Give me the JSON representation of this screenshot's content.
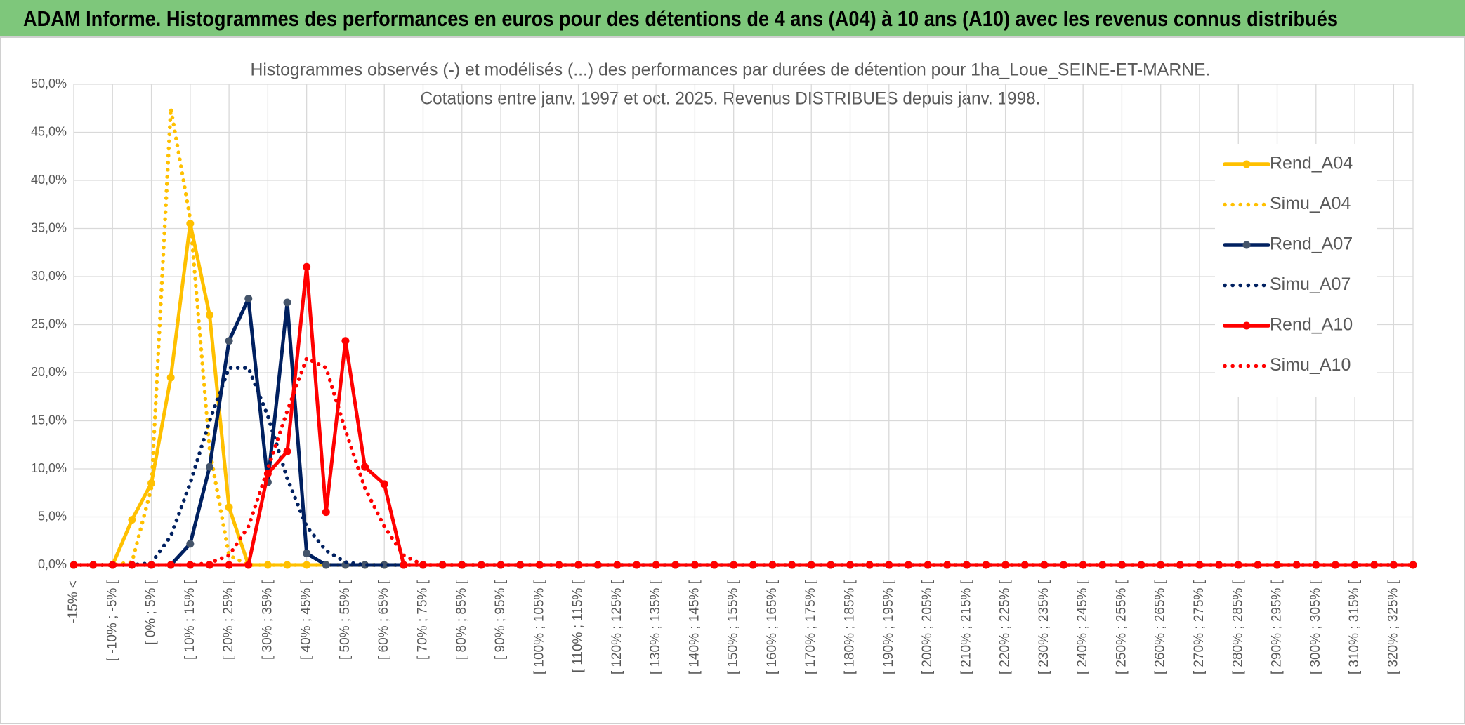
{
  "chart_data": {
    "type": "line",
    "title": "ADAM Informe. Histogrammes des performances en euros pour des détentions de 4 ans (A04) à 10 ans (A10) avec les revenus connus distribués",
    "subtitle": [
      "Histogrammes observés (-) et modélisés (...) des performances par durées de détention pour 1ha_Loue_SEINE-ET-MARNE.",
      "Cotations entre janv. 1997 et oct. 2025. Revenus DISTRIBUES depuis janv. 1998."
    ],
    "categories": [
      "-15% <",
      null,
      "[ -10% ; -5% [",
      null,
      "[ 0% ; 5% [",
      null,
      "[ 10% ; 15% [",
      null,
      "[ 20% ; 25% [",
      null,
      "[ 30% ; 35% [",
      null,
      "[ 40% ; 45% [",
      null,
      "[ 50% ; 55% [",
      null,
      "[ 60% ; 65% [",
      null,
      "[ 70% ; 75% [",
      null,
      "[ 80% ; 85% [",
      null,
      "[ 90% ; 95% [",
      null,
      "[ 100% ; 105% [",
      null,
      "[ 110% ; 115% [",
      null,
      "[ 120% ; 125% [",
      null,
      "[ 130% ; 135% [",
      null,
      "[ 140% ; 145% [",
      null,
      "[ 150% ; 155% [",
      null,
      "[ 160% ; 165% [",
      null,
      "[ 170% ; 175% [",
      null,
      "[ 180% ; 185% [",
      null,
      "[ 190% ; 195% [",
      null,
      "[ 200% ; 205% [",
      null,
      "[ 210% ; 215% [",
      null,
      "[ 220% ; 225% [",
      null,
      "[ 230% ; 235% [",
      null,
      "[ 240% ; 245% [",
      null,
      "[ 250% ; 255% [",
      null,
      "[ 260% ; 265% [",
      null,
      "[ 270% ; 275% [",
      null,
      "[ 280% ; 285% [",
      null,
      "[ 290% ; 295% [",
      null,
      "[ 300% ; 305% [",
      null,
      "[ 310% ; 315% [",
      null,
      "[ 320% ; 325% [",
      null
    ],
    "series": [
      {
        "name": "Rend_A04",
        "color": "#ffc000",
        "style": "solid",
        "markers": true,
        "values": [
          0,
          0,
          0,
          4.7,
          8.5,
          19.5,
          35.5,
          26,
          6,
          0,
          0,
          0,
          0,
          0,
          0,
          0,
          0,
          0,
          0,
          0,
          0,
          0,
          0,
          0,
          0,
          0,
          0,
          0,
          0,
          0,
          0,
          0,
          0,
          0,
          0,
          0,
          0,
          0,
          0,
          0,
          0,
          0,
          0,
          0,
          0,
          0,
          0,
          0,
          0,
          0,
          0,
          0,
          0,
          0,
          0,
          0,
          0,
          0,
          0,
          0,
          0,
          0,
          0,
          0,
          0,
          0,
          0,
          0,
          0,
          0
        ]
      },
      {
        "name": "Simu_A04",
        "color": "#ffc000",
        "style": "dotted",
        "markers": false,
        "values": [
          0,
          0,
          0,
          0.3,
          8,
          47.5,
          36,
          12,
          1,
          0,
          0,
          0,
          0,
          0,
          0,
          0,
          0,
          0,
          0,
          0,
          0,
          0,
          0,
          0,
          0,
          0,
          0,
          0,
          0,
          0,
          0,
          0,
          0,
          0,
          0,
          0,
          0,
          0,
          0,
          0,
          0,
          0,
          0,
          0,
          0,
          0,
          0,
          0,
          0,
          0,
          0,
          0,
          0,
          0,
          0,
          0,
          0,
          0,
          0,
          0,
          0,
          0,
          0,
          0,
          0,
          0,
          0,
          0,
          0,
          0
        ]
      },
      {
        "name": "Rend_A07",
        "color": "#002060",
        "marker_color": "#44546a",
        "style": "solid",
        "markers": true,
        "values": [
          0,
          0,
          0,
          0,
          0,
          0,
          2.2,
          10.2,
          23.3,
          27.7,
          8.6,
          27.3,
          1.2,
          0,
          0,
          0,
          0,
          0,
          0,
          0,
          0,
          0,
          0,
          0,
          0,
          0,
          0,
          0,
          0,
          0,
          0,
          0,
          0,
          0,
          0,
          0,
          0,
          0,
          0,
          0,
          0,
          0,
          0,
          0,
          0,
          0,
          0,
          0,
          0,
          0,
          0,
          0,
          0,
          0,
          0,
          0,
          0,
          0,
          0,
          0,
          0,
          0,
          0,
          0,
          0,
          0,
          0,
          0,
          0,
          0
        ]
      },
      {
        "name": "Simu_A07",
        "color": "#002060",
        "style": "dotted",
        "markers": false,
        "values": [
          0,
          0,
          0,
          0,
          0.2,
          3,
          8.5,
          15,
          20.5,
          20.5,
          15.5,
          9,
          4,
          1.5,
          0.3,
          0,
          0,
          0,
          0,
          0,
          0,
          0,
          0,
          0,
          0,
          0,
          0,
          0,
          0,
          0,
          0,
          0,
          0,
          0,
          0,
          0,
          0,
          0,
          0,
          0,
          0,
          0,
          0,
          0,
          0,
          0,
          0,
          0,
          0,
          0,
          0,
          0,
          0,
          0,
          0,
          0,
          0,
          0,
          0,
          0,
          0,
          0,
          0,
          0,
          0,
          0,
          0,
          0,
          0,
          0
        ]
      },
      {
        "name": "Rend_A10",
        "color": "#ff0000",
        "style": "solid",
        "markers": true,
        "values": [
          0,
          0,
          0,
          0,
          0,
          0,
          0,
          0,
          0,
          0,
          9.5,
          11.8,
          31,
          5.5,
          23.3,
          10.2,
          8.4,
          0,
          0,
          0,
          0,
          0,
          0,
          0,
          0,
          0,
          0,
          0,
          0,
          0,
          0,
          0,
          0,
          0,
          0,
          0,
          0,
          0,
          0,
          0,
          0,
          0,
          0,
          0,
          0,
          0,
          0,
          0,
          0,
          0,
          0,
          0,
          0,
          0,
          0,
          0,
          0,
          0,
          0,
          0,
          0,
          0,
          0,
          0,
          0,
          0,
          0,
          0,
          0,
          0
        ]
      },
      {
        "name": "Simu_A10",
        "color": "#ff0000",
        "style": "dotted",
        "markers": false,
        "values": [
          0,
          0,
          0,
          0,
          0,
          0,
          0,
          0.2,
          1,
          4,
          10,
          16,
          21.5,
          20.5,
          14,
          8,
          4,
          1,
          0,
          0,
          0,
          0,
          0,
          0,
          0,
          0,
          0,
          0,
          0,
          0,
          0,
          0,
          0,
          0,
          0,
          0,
          0,
          0,
          0,
          0,
          0,
          0,
          0,
          0,
          0,
          0,
          0,
          0,
          0,
          0,
          0,
          0,
          0,
          0,
          0,
          0,
          0,
          0,
          0,
          0,
          0,
          0,
          0,
          0,
          0,
          0,
          0,
          0,
          0,
          0
        ]
      }
    ],
    "ylim": [
      0,
      50
    ],
    "yticks": [
      {
        "value": 0,
        "label": "0,0%"
      },
      {
        "value": 5,
        "label": "5,0%"
      },
      {
        "value": 10,
        "label": "10,0%"
      },
      {
        "value": 15,
        "label": "15,0%"
      },
      {
        "value": 20,
        "label": "20,0%"
      },
      {
        "value": 25,
        "label": "25,0%"
      },
      {
        "value": 30,
        "label": "30,0%"
      },
      {
        "value": 35,
        "label": "35,0%"
      },
      {
        "value": 40,
        "label": "40,0%"
      },
      {
        "value": 45,
        "label": "45,0%"
      },
      {
        "value": 50,
        "label": "50,0%"
      }
    ],
    "grid": true,
    "legend": "right"
  }
}
